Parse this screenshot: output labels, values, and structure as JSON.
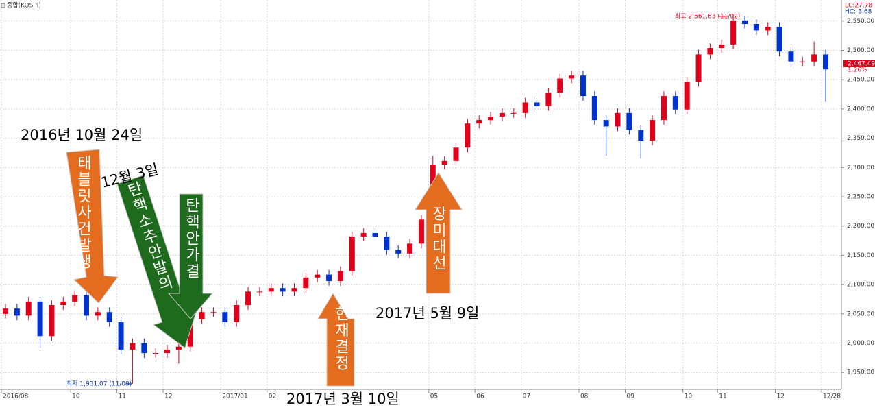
{
  "chart_data": {
    "type": "candlestick",
    "title": "종합(KOSPI)",
    "indicators": [
      {
        "text": "LC:27.78",
        "color": "#e0001b"
      },
      {
        "text": "HC:-3.68",
        "color": "#0033cc"
      }
    ],
    "last_label": "2,467.49",
    "change_label": "1.26%",
    "high_label": "최고 2,561.63 (11/02)",
    "low_label": "최저 1,931.07 (11/09)",
    "up_color": "#e0001b",
    "down_color": "#0033cc",
    "grid": true,
    "categories": [
      "2016/08",
      null,
      null,
      null,
      null,
      null,
      "10",
      null,
      null,
      null,
      "11",
      null,
      null,
      null,
      "12",
      null,
      null,
      null,
      null,
      "2017/01",
      null,
      null,
      null,
      "02",
      null,
      null,
      null,
      null,
      null,
      null,
      null,
      null,
      null,
      null,
      null,
      null,
      null,
      "05",
      null,
      null,
      null,
      "06",
      null,
      null,
      null,
      "07",
      null,
      null,
      null,
      null,
      "08",
      null,
      null,
      null,
      "09",
      null,
      null,
      null,
      null,
      "10",
      null,
      null,
      "11",
      null,
      null,
      null,
      null,
      "12",
      null,
      null,
      null,
      "12/28"
    ],
    "open": [
      2050,
      2059,
      2047,
      2071,
      2012,
      2065,
      2071,
      2082,
      2047,
      2053,
      2036,
      1989,
      2000,
      1983,
      1983,
      1989,
      1994,
      2041,
      2053,
      2053,
      2036,
      2065,
      2088,
      2088,
      2094,
      2088,
      2094,
      2112,
      2117,
      2106,
      2123,
      2182,
      2188,
      2182,
      2159,
      2153,
      2170,
      2211,
      2305,
      2311,
      2334,
      2375,
      2381,
      2387,
      2393,
      2393,
      2411,
      2405,
      2428,
      2452,
      2457,
      2422,
      2381,
      2370,
      2393,
      2364,
      2346,
      2381,
      2422,
      2399,
      2446,
      2493,
      2504,
      2510,
      2551,
      2545,
      2534,
      2540,
      2498,
      2481,
      2481,
      2493
    ],
    "high": [
      2067,
      2067,
      2079,
      2079,
      2073,
      2079,
      2090,
      2090,
      2061,
      2061,
      2044,
      2008,
      2008,
      1991,
      1997,
      2002,
      2049,
      2061,
      2061,
      2061,
      2073,
      2096,
      2096,
      2102,
      2102,
      2102,
      2120,
      2125,
      2125,
      2131,
      2190,
      2196,
      2196,
      2190,
      2167,
      2178,
      2219,
      2320,
      2319,
      2342,
      2383,
      2389,
      2395,
      2401,
      2401,
      2419,
      2419,
      2436,
      2460,
      2465,
      2465,
      2430,
      2389,
      2401,
      2401,
      2372,
      2389,
      2430,
      2430,
      2454,
      2501,
      2512,
      2518,
      2561.63,
      2559,
      2553,
      2548,
      2548,
      2506,
      2489,
      2515,
      2501
    ],
    "low": [
      2042,
      2039,
      2039,
      1992,
      2004,
      2057,
      2063,
      2039,
      2039,
      2028,
      1981,
      1931.07,
      1975,
      1975,
      1975,
      1965,
      1986,
      2033,
      2045,
      2028,
      2028,
      2057,
      2080,
      2080,
      2080,
      2080,
      2086,
      2104,
      2098,
      2098,
      2115,
      2174,
      2174,
      2151,
      2145,
      2145,
      2162,
      2203,
      2297,
      2303,
      2326,
      2367,
      2373,
      2379,
      2385,
      2385,
      2397,
      2397,
      2420,
      2444,
      2414,
      2373,
      2320,
      2362,
      2356,
      2315,
      2338,
      2373,
      2391,
      2391,
      2438,
      2485,
      2496,
      2502,
      2537,
      2526,
      2526,
      2490,
      2473,
      2473,
      2473,
      2412
    ],
    "close": [
      2059,
      2047,
      2071,
      2012,
      2065,
      2071,
      2082,
      2047,
      2053,
      2036,
      1989,
      2000,
      1983,
      1983,
      1989,
      1994,
      2041,
      2053,
      2053,
      2036,
      2065,
      2088,
      2088,
      2094,
      2088,
      2094,
      2112,
      2117,
      2106,
      2123,
      2182,
      2188,
      2182,
      2159,
      2153,
      2170,
      2211,
      2305,
      2311,
      2334,
      2375,
      2381,
      2387,
      2393,
      2393,
      2411,
      2405,
      2428,
      2452,
      2457,
      2422,
      2381,
      2370,
      2393,
      2364,
      2346,
      2381,
      2422,
      2399,
      2446,
      2493,
      2504,
      2510,
      2551,
      2545,
      2534,
      2540,
      2498,
      2481,
      2481,
      2493,
      2467.49
    ],
    "ylim": [
      1921,
      2586
    ],
    "yticks": [
      {
        "value": 1950,
        "label": "1,950.00"
      },
      {
        "value": 2000,
        "label": "2,000.00"
      },
      {
        "value": 2050,
        "label": "2,050.00"
      },
      {
        "value": 2100,
        "label": "2,100.00"
      },
      {
        "value": 2150,
        "label": "2,150.00"
      },
      {
        "value": 2200,
        "label": "2,200.00"
      },
      {
        "value": 2250,
        "label": "2,250.00"
      },
      {
        "value": 2300,
        "label": "2,300.00"
      },
      {
        "value": 2350,
        "label": "2,350.00"
      },
      {
        "value": 2400,
        "label": "2,400.00"
      },
      {
        "value": 2450,
        "label": "2,450.00"
      },
      {
        "value": 2500,
        "label": "2,500.00"
      },
      {
        "value": 2550,
        "label": "2,550.00"
      }
    ]
  },
  "annotations": [
    {
      "text": "태블릿사건발생",
      "date": "2016년 10월 24일"
    },
    {
      "text": "탄핵소추안발의",
      "date": "12월 3일"
    },
    {
      "text": "탄핵안가결"
    },
    {
      "text": "헌재결정",
      "date": "2017년 3월 10일"
    },
    {
      "text": "장미대선",
      "date": "2017년 5월 9일"
    }
  ]
}
